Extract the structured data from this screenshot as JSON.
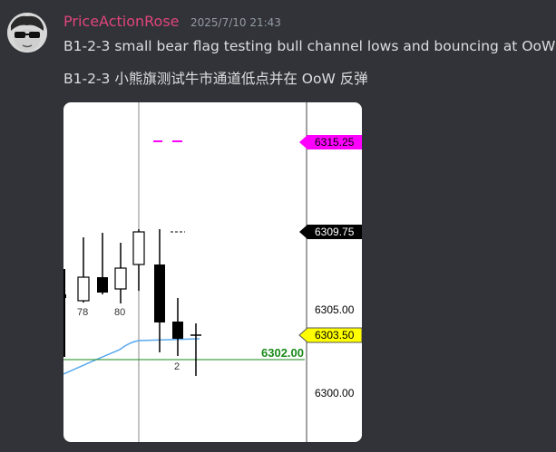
{
  "message": {
    "username": "PriceActionRose",
    "timestamp": "2025/7/10 21:43",
    "line1": "B1-2-3  small bear flag testing bull channel lows and bouncing at OoW",
    "line2": "B1-2-3  小熊旗测试牛市通道低点并在 OoW 反弹"
  },
  "chart_data": {
    "type": "candlestick",
    "price_labels": {
      "magenta_tag": "6315.25",
      "black_tag": "6309.75",
      "tick_6305": "6305.00",
      "yellow_tag": "6303.50",
      "tick_6300": "6300.00",
      "green_line_label": "6302.00"
    },
    "bar_labels": [
      "78",
      "80",
      "2"
    ],
    "colors": {
      "magenta": "#ff00ff",
      "yellow": "#ffff00",
      "green": "#1a8a1a",
      "ema": "#5aa9ee"
    }
  }
}
